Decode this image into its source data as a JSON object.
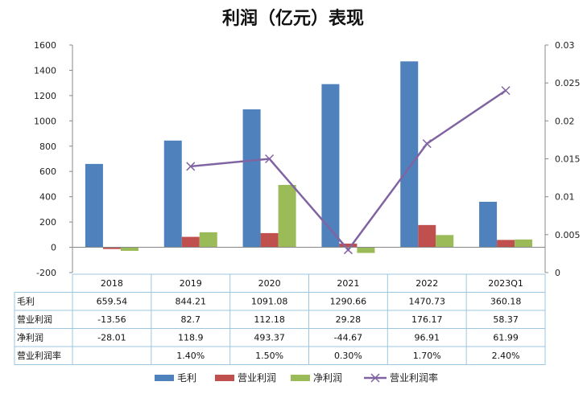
{
  "chart_data": {
    "type": "bar",
    "title": "利润（亿元）表现",
    "categories": [
      "2018",
      "2019",
      "2020",
      "2021",
      "2022",
      "2023Q1"
    ],
    "series": [
      {
        "name": "毛利",
        "kind": "bar",
        "axis": "left",
        "color": "#4F81BD",
        "values": [
          659.54,
          844.21,
          1091.08,
          1290.66,
          1470.73,
          360.18
        ],
        "labels": [
          "659.54",
          "844.21",
          "1091.08",
          "1290.66",
          "1470.73",
          "360.18"
        ]
      },
      {
        "name": "营业利润",
        "kind": "bar",
        "axis": "left",
        "color": "#C0504D",
        "values": [
          -13.56,
          82.7,
          112.18,
          29.28,
          176.17,
          58.37
        ],
        "labels": [
          "-13.56",
          "82.7",
          "112.18",
          "29.28",
          "176.17",
          "58.37"
        ]
      },
      {
        "name": "净利润",
        "kind": "bar",
        "axis": "left",
        "color": "#9BBB59",
        "values": [
          -28.01,
          118.9,
          493.37,
          -44.67,
          96.91,
          61.99
        ],
        "labels": [
          "-28.01",
          "118.9",
          "493.37",
          "-44.67",
          "96.91",
          "61.99"
        ]
      },
      {
        "name": "营业利润率",
        "kind": "line",
        "axis": "right",
        "color": "#8064A2",
        "values": [
          null,
          0.014,
          0.015,
          0.003,
          0.017,
          0.024
        ],
        "labels": [
          "",
          "1.40%",
          "1.50%",
          "0.30%",
          "1.70%",
          "2.40%"
        ]
      }
    ],
    "left_axis": {
      "min": -200,
      "max": 1600,
      "ticks": [
        "-200",
        "0",
        "200",
        "400",
        "600",
        "800",
        "1000",
        "1200",
        "1400",
        "1600"
      ]
    },
    "right_axis": {
      "min": 0,
      "max": 0.03,
      "ticks": [
        "0",
        "0.005",
        "0.01",
        "0.015",
        "0.02",
        "0.025",
        "0.03"
      ]
    },
    "grid": false,
    "legend_position": "bottom",
    "data_table": true
  }
}
